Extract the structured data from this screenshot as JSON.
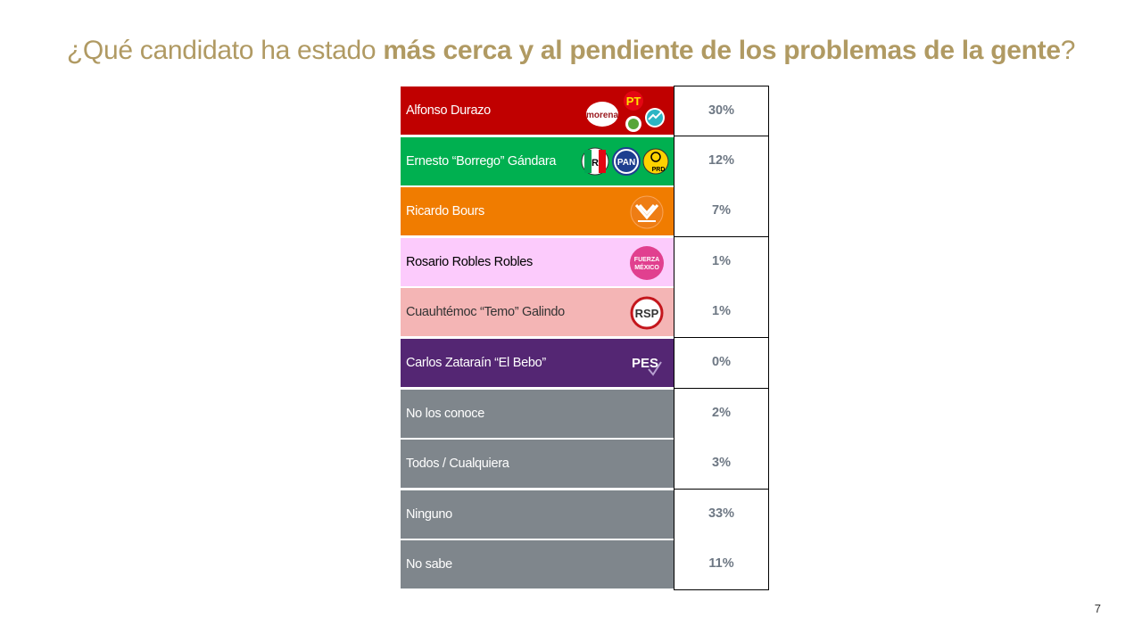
{
  "title": {
    "prefix": "¿Qué candidato ha estado ",
    "bold": "más cerca y al pendiente de los problemas de la gente",
    "suffix": "?"
  },
  "chart_data": {
    "type": "table",
    "rows": [
      {
        "label": "Alfonso Durazo",
        "value": "30%",
        "color": "#c00000",
        "text_color": "#ffffff",
        "logos": [
          "morena-logo",
          "pt-logo",
          "pvem-logo",
          "nueva-alianza-logo"
        ]
      },
      {
        "label": "Ernesto “Borrego” Gándara",
        "value": "12%",
        "color": "#00b050",
        "text_color": "#ffffff",
        "logos": [
          "pri-logo",
          "pan-logo",
          "prd-logo"
        ]
      },
      {
        "label": "Ricardo Bours",
        "value": "7%",
        "color": "#f07c00",
        "text_color": "#ffffff",
        "logos": [
          "movimiento-ciudadano-logo"
        ]
      },
      {
        "label": "Rosario Robles Robles",
        "value": "1%",
        "color": "#fccbfc",
        "text_color": "#000000",
        "logos": [
          "fuerza-mexico-logo"
        ]
      },
      {
        "label": "Cuauhtémoc “Temo” Galindo",
        "value": "1%",
        "color": "#f4b5b5",
        "text_color": "#333333",
        "logos": [
          "rsp-logo"
        ]
      },
      {
        "label": "Carlos Zataraín “El Bebo”",
        "value": "0%",
        "color": "#542673",
        "text_color": "#ffffff",
        "logos": [
          "pes-logo"
        ]
      },
      {
        "label": "No los conoce",
        "value": "2%",
        "color": "#7f868c",
        "text_color": "#ffffff",
        "logos": []
      },
      {
        "label": "Todos / Cualquiera",
        "value": "3%",
        "color": "#7f868c",
        "text_color": "#ffffff",
        "logos": []
      },
      {
        "label": "Ninguno",
        "value": "33%",
        "color": "#7f868c",
        "text_color": "#ffffff",
        "logos": []
      },
      {
        "label": "No sabe",
        "value": "11%",
        "color": "#7f868c",
        "text_color": "#ffffff",
        "logos": []
      }
    ]
  },
  "logo_text": {
    "morena": "morena",
    "pt": "PT",
    "pan": "PAN",
    "prd": "PRD",
    "fuerza_1": "FUERZA",
    "fuerza_2": "MÉXICO",
    "rsp": "RSP",
    "pes": "PES"
  },
  "page_number": "7",
  "colors": {
    "title": "#b09a63",
    "value_text": "#6e7884"
  }
}
